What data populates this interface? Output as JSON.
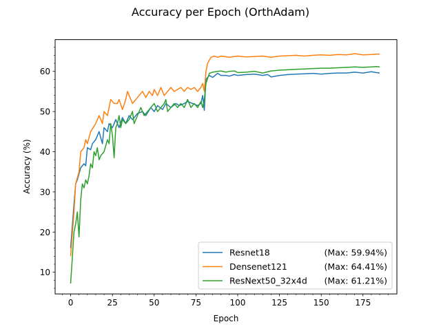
{
  "chart_data": {
    "type": "line",
    "title": "Accuracy per Epoch (OrthAdam)",
    "xlabel": "Epoch",
    "ylabel": "Accuracy (%)",
    "xlim": [
      -9.3,
      195.3
    ],
    "ylim": [
      4.6,
      67.9
    ],
    "xticks": [
      0,
      25,
      50,
      75,
      100,
      125,
      150,
      175
    ],
    "yticks": [
      10,
      20,
      30,
      40,
      50,
      60
    ],
    "grid": false,
    "legend_position": "lower right",
    "series": [
      {
        "name": "Resnet18",
        "max_label": "(Max: 59.94%)",
        "color": "#1f77b4",
        "points": [
          [
            0,
            16
          ],
          [
            2,
            27
          ],
          [
            3,
            32
          ],
          [
            4,
            33
          ],
          [
            6,
            36
          ],
          [
            8,
            37
          ],
          [
            9,
            36.5
          ],
          [
            10,
            41
          ],
          [
            12,
            40.5
          ],
          [
            13,
            42
          ],
          [
            15,
            43
          ],
          [
            17,
            45
          ],
          [
            19,
            42
          ],
          [
            20,
            46
          ],
          [
            22,
            45
          ],
          [
            23,
            47
          ],
          [
            25,
            46
          ],
          [
            27,
            48
          ],
          [
            29,
            46
          ],
          [
            31,
            48.5
          ],
          [
            33,
            47
          ],
          [
            35,
            49
          ],
          [
            37,
            48
          ],
          [
            40,
            49.5
          ],
          [
            43,
            50
          ],
          [
            45,
            49
          ],
          [
            48,
            51
          ],
          [
            50,
            50
          ],
          [
            52,
            51.5
          ],
          [
            55,
            50.5
          ],
          [
            57,
            52
          ],
          [
            60,
            51
          ],
          [
            63,
            52
          ],
          [
            65,
            51.5
          ],
          [
            68,
            52
          ],
          [
            70,
            52.5
          ],
          [
            73,
            52
          ],
          [
            76,
            51.5
          ],
          [
            78,
            52
          ],
          [
            79,
            54
          ],
          [
            80,
            50.3
          ],
          [
            81,
            58
          ],
          [
            83,
            59
          ],
          [
            85,
            58.5
          ],
          [
            88,
            59.5
          ],
          [
            90,
            59
          ],
          [
            93,
            59
          ],
          [
            95,
            58.8
          ],
          [
            98,
            59.2
          ],
          [
            100,
            59
          ],
          [
            105,
            59.2
          ],
          [
            110,
            59.3
          ],
          [
            115,
            59
          ],
          [
            118,
            59.2
          ],
          [
            120,
            58.6
          ],
          [
            125,
            59
          ],
          [
            130,
            59.2
          ],
          [
            135,
            59.3
          ],
          [
            140,
            59.4
          ],
          [
            145,
            59.5
          ],
          [
            150,
            59.3
          ],
          [
            155,
            59.5
          ],
          [
            160,
            59.6
          ],
          [
            165,
            59.6
          ],
          [
            170,
            59.8
          ],
          [
            175,
            59.6
          ],
          [
            180,
            59.9
          ],
          [
            183,
            59.7
          ],
          [
            185,
            59.6
          ]
        ]
      },
      {
        "name": "Densenet121",
        "max_label": "(Max: 64.41%)",
        "color": "#ff7f0e",
        "points": [
          [
            0,
            14
          ],
          [
            2,
            25
          ],
          [
            3,
            32
          ],
          [
            5,
            35
          ],
          [
            6,
            40
          ],
          [
            8,
            41
          ],
          [
            9,
            43
          ],
          [
            10,
            42
          ],
          [
            12,
            45
          ],
          [
            15,
            47
          ],
          [
            17,
            49
          ],
          [
            19,
            47
          ],
          [
            20,
            50
          ],
          [
            22,
            49
          ],
          [
            23,
            51
          ],
          [
            24,
            53
          ],
          [
            26,
            52
          ],
          [
            28,
            52
          ],
          [
            29,
            53
          ],
          [
            31,
            50.5
          ],
          [
            33,
            53
          ],
          [
            34,
            55
          ],
          [
            35,
            54
          ],
          [
            37,
            52
          ],
          [
            39,
            53
          ],
          [
            41,
            54
          ],
          [
            43,
            55
          ],
          [
            45,
            53.5
          ],
          [
            47,
            55
          ],
          [
            49,
            54
          ],
          [
            50,
            55.5
          ],
          [
            52,
            54
          ],
          [
            54,
            56
          ],
          [
            56,
            54
          ],
          [
            58,
            55
          ],
          [
            60,
            56
          ],
          [
            62,
            55
          ],
          [
            64,
            55.5
          ],
          [
            66,
            56
          ],
          [
            68,
            55
          ],
          [
            70,
            56
          ],
          [
            72,
            55.5
          ],
          [
            74,
            56
          ],
          [
            76,
            55
          ],
          [
            78,
            56
          ],
          [
            79,
            57
          ],
          [
            80,
            55
          ],
          [
            81,
            60
          ],
          [
            82,
            62
          ],
          [
            84,
            63.5
          ],
          [
            86,
            63.8
          ],
          [
            88,
            63.5
          ],
          [
            90,
            63.8
          ],
          [
            95,
            63.5
          ],
          [
            100,
            63.8
          ],
          [
            105,
            63.6
          ],
          [
            110,
            63.7
          ],
          [
            115,
            63.8
          ],
          [
            120,
            63.5
          ],
          [
            125,
            63.8
          ],
          [
            130,
            63.9
          ],
          [
            135,
            64
          ],
          [
            140,
            63.8
          ],
          [
            145,
            64
          ],
          [
            150,
            64.1
          ],
          [
            155,
            64
          ],
          [
            160,
            64.2
          ],
          [
            165,
            64.1
          ],
          [
            170,
            64.4
          ],
          [
            175,
            64.1
          ],
          [
            180,
            64.2
          ],
          [
            183,
            64.3
          ],
          [
            185,
            64.3
          ]
        ]
      },
      {
        "name": "ResNext50_32x4d",
        "max_label": "(Max: 61.21%)",
        "color": "#2ca02c",
        "points": [
          [
            0,
            7.2
          ],
          [
            2,
            20
          ],
          [
            3,
            22
          ],
          [
            4,
            25
          ],
          [
            5,
            18.8
          ],
          [
            6,
            28
          ],
          [
            7,
            32
          ],
          [
            8,
            31
          ],
          [
            9,
            33
          ],
          [
            10,
            32
          ],
          [
            11,
            34
          ],
          [
            12,
            37
          ],
          [
            13,
            36
          ],
          [
            14,
            40
          ],
          [
            15,
            39
          ],
          [
            16,
            41
          ],
          [
            17,
            38
          ],
          [
            18,
            39
          ],
          [
            20,
            40
          ],
          [
            22,
            43
          ],
          [
            23,
            42
          ],
          [
            24,
            47
          ],
          [
            25,
            44
          ],
          [
            26,
            38.5
          ],
          [
            27,
            46
          ],
          [
            28,
            47
          ],
          [
            29,
            49
          ],
          [
            30,
            46
          ],
          [
            31,
            48
          ],
          [
            33,
            47
          ],
          [
            35,
            48
          ],
          [
            37,
            50
          ],
          [
            38,
            47
          ],
          [
            40,
            49
          ],
          [
            42,
            51
          ],
          [
            44,
            49
          ],
          [
            46,
            50
          ],
          [
            48,
            51
          ],
          [
            50,
            52
          ],
          [
            52,
            50
          ],
          [
            54,
            51
          ],
          [
            56,
            52
          ],
          [
            57,
            53
          ],
          [
            58,
            50
          ],
          [
            60,
            51
          ],
          [
            62,
            52
          ],
          [
            64,
            51
          ],
          [
            66,
            52
          ],
          [
            68,
            51
          ],
          [
            70,
            53
          ],
          [
            72,
            51
          ],
          [
            74,
            52
          ],
          [
            76,
            51
          ],
          [
            78,
            52.5
          ],
          [
            79,
            51
          ],
          [
            80,
            53
          ],
          [
            81,
            57
          ],
          [
            83,
            59.5
          ],
          [
            85,
            59.8
          ],
          [
            88,
            60
          ],
          [
            90,
            60.1
          ],
          [
            93,
            59.8
          ],
          [
            95,
            60
          ],
          [
            98,
            60.1
          ],
          [
            100,
            59.7
          ],
          [
            105,
            59.8
          ],
          [
            110,
            60
          ],
          [
            115,
            59.6
          ],
          [
            120,
            60.1
          ],
          [
            125,
            60.3
          ],
          [
            130,
            60.4
          ],
          [
            135,
            60.5
          ],
          [
            140,
            60.6
          ],
          [
            145,
            60.7
          ],
          [
            150,
            60.8
          ],
          [
            155,
            60.8
          ],
          [
            160,
            60.9
          ],
          [
            165,
            61
          ],
          [
            170,
            61.1
          ],
          [
            175,
            61
          ],
          [
            180,
            61.1
          ],
          [
            183,
            61.2
          ],
          [
            185,
            61.1
          ]
        ]
      }
    ]
  }
}
